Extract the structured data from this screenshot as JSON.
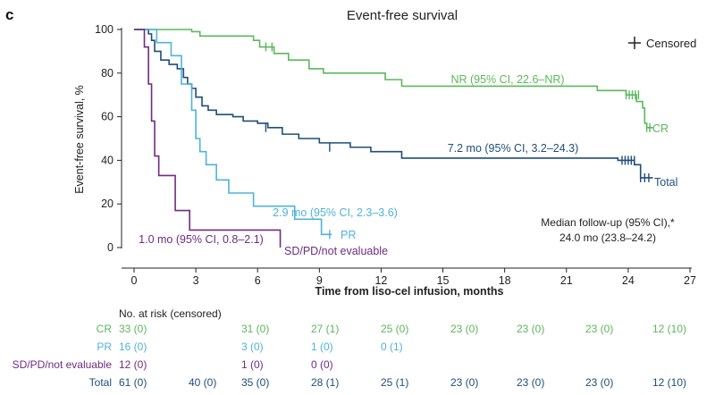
{
  "panel_letter": "c",
  "chart_data": {
    "type": "line",
    "title": "Event-free survival",
    "xlabel": "Time from liso-cel infusion, months",
    "ylabel": "Event-free survival, %",
    "xlim": [
      0,
      27
    ],
    "ylim": [
      0,
      100
    ],
    "xticks": [
      "0",
      "3",
      "6",
      "9",
      "12",
      "15",
      "18",
      "21",
      "24",
      "27"
    ],
    "yticks": [
      "0",
      "20",
      "40",
      "60",
      "80",
      "100"
    ],
    "legend": {
      "censored_label": "Censored",
      "placement": "top-right"
    },
    "series": [
      {
        "name": "CR",
        "end_label": "CR",
        "color": "#5cb85c",
        "median_label": "NR (95% CI, 22.6–NR)",
        "steps": [
          [
            0,
            100
          ],
          [
            1.8,
            100
          ],
          [
            2.8,
            99
          ],
          [
            3.2,
            97
          ],
          [
            5.8,
            95
          ],
          [
            6.1,
            92
          ],
          [
            6.8,
            89
          ],
          [
            7.5,
            86
          ],
          [
            8.5,
            82
          ],
          [
            9.2,
            80
          ],
          [
            12.2,
            77
          ],
          [
            13.0,
            74
          ],
          [
            22.5,
            72
          ],
          [
            23.9,
            70
          ],
          [
            24.4,
            67
          ],
          [
            24.7,
            64
          ],
          [
            24.8,
            57
          ],
          [
            24.9,
            55
          ]
        ],
        "end_time": 25.2,
        "censored": [
          [
            6.4,
            92
          ],
          [
            6.7,
            92
          ],
          [
            23.9,
            70
          ],
          [
            24.05,
            70
          ],
          [
            24.2,
            70
          ],
          [
            24.35,
            70
          ],
          [
            24.5,
            70
          ],
          [
            24.9,
            55
          ],
          [
            25.05,
            55
          ]
        ]
      },
      {
        "name": "Total",
        "end_label": "Total",
        "color": "#1f4e79",
        "median_label": "7.2 mo (95% CI, 3.2–24.3)",
        "steps": [
          [
            0,
            100
          ],
          [
            0.7,
            98
          ],
          [
            0.85,
            95
          ],
          [
            1.0,
            90
          ],
          [
            1.3,
            86
          ],
          [
            1.7,
            84
          ],
          [
            2.1,
            82
          ],
          [
            2.4,
            78
          ],
          [
            2.6,
            75
          ],
          [
            2.8,
            73
          ],
          [
            3.0,
            69
          ],
          [
            3.3,
            65
          ],
          [
            3.6,
            63
          ],
          [
            4.0,
            61
          ],
          [
            4.8,
            60
          ],
          [
            5.3,
            58
          ],
          [
            6.0,
            57
          ],
          [
            6.5,
            55
          ],
          [
            7.2,
            52
          ],
          [
            8.0,
            50
          ],
          [
            9.0,
            48
          ],
          [
            10.5,
            46
          ],
          [
            11.5,
            44
          ],
          [
            13.0,
            41
          ],
          [
            23.5,
            40
          ],
          [
            24.3,
            38
          ],
          [
            24.6,
            32
          ]
        ],
        "end_time": 25.2,
        "censored": [
          [
            6.4,
            55
          ],
          [
            9.5,
            46
          ],
          [
            23.7,
            40
          ],
          [
            23.85,
            40
          ],
          [
            24.0,
            40
          ],
          [
            24.15,
            40
          ],
          [
            24.3,
            40
          ],
          [
            24.6,
            32
          ],
          [
            24.8,
            32
          ],
          [
            25.0,
            32
          ]
        ]
      },
      {
        "name": "PR",
        "end_label": "PR",
        "color": "#4fb3d9",
        "median_label": "2.9 mo (95% CI, 2.3–3.6)",
        "steps": [
          [
            0,
            100
          ],
          [
            1.1,
            94
          ],
          [
            1.8,
            88
          ],
          [
            2.3,
            75
          ],
          [
            2.8,
            63
          ],
          [
            3.0,
            50
          ],
          [
            3.2,
            44
          ],
          [
            3.5,
            38
          ],
          [
            4.0,
            31
          ],
          [
            4.6,
            25
          ],
          [
            5.8,
            19
          ],
          [
            7.8,
            13
          ],
          [
            9.1,
            6
          ]
        ],
        "end_time": 9.6,
        "censored": [
          [
            9.5,
            6
          ]
        ]
      },
      {
        "name": "SD/PD/not evaluable",
        "end_label": "SD/PD/not evaluable",
        "color": "#6e2c80",
        "median_label": "1.0 mo (95% CI, 0.8–2.1)",
        "steps": [
          [
            0,
            100
          ],
          [
            0.5,
            92
          ],
          [
            0.7,
            75
          ],
          [
            0.85,
            58
          ],
          [
            1.0,
            42
          ],
          [
            1.2,
            33
          ],
          [
            2.0,
            17
          ],
          [
            2.7,
            8
          ],
          [
            7.1,
            0
          ]
        ],
        "end_time": 7.1,
        "censored": []
      }
    ],
    "annotations": {
      "followup_line1": "Median follow-up (95% CI),*",
      "followup_line2": "24.0 mo (23.8–24.2)"
    }
  },
  "risk_table": {
    "header": "No. at risk (censored)",
    "rows": [
      {
        "label": "CR",
        "color": "#5cb85c",
        "cells": [
          "33 (0)",
          "",
          "31 (0)",
          "27 (1)",
          "25 (0)",
          "23 (0)",
          "23 (0)",
          "23 (0)",
          "12 (10)"
        ]
      },
      {
        "label": "PR",
        "color": "#4fb3d9",
        "cells": [
          "16 (0)",
          "",
          "3 (0)",
          "1 (0)",
          "0 (1)",
          "",
          "",
          "",
          ""
        ]
      },
      {
        "label": "SD/PD/not evaluable",
        "color": "#6e2c80",
        "cells": [
          "12 (0)",
          "",
          "1 (0)",
          "0 (0)",
          "",
          "",
          "",
          "",
          ""
        ]
      },
      {
        "label": "Total",
        "color": "#1f4e79",
        "cells": [
          "61 (0)",
          "40 (0)",
          "35 (0)",
          "28 (1)",
          "25 (1)",
          "23 (0)",
          "23 (0)",
          "23 (0)",
          "12 (10)"
        ]
      }
    ]
  }
}
